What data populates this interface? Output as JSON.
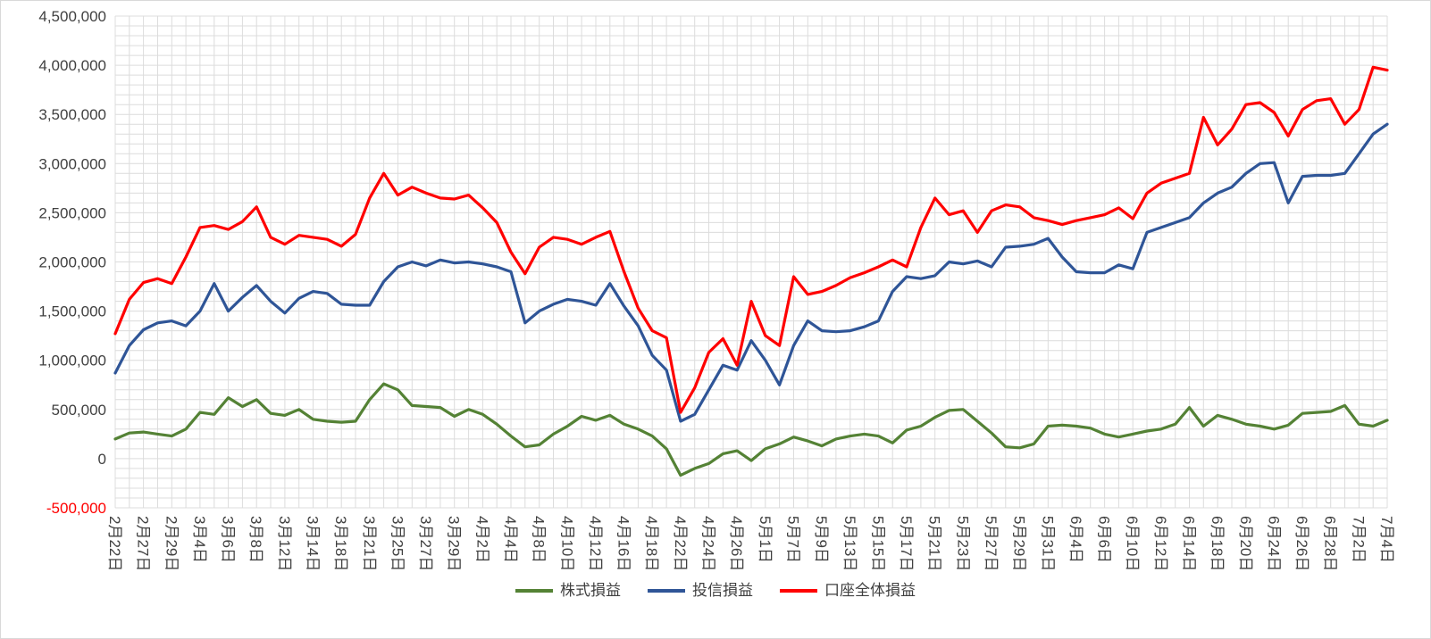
{
  "chart_data": {
    "type": "line",
    "title": "",
    "num_points": 91,
    "label_every_nth_point": 2,
    "x_tick_labels": [
      "2月22日",
      "2月27日",
      "2月29日",
      "3月4日",
      "3月6日",
      "3月8日",
      "3月12日",
      "3月14日",
      "3月18日",
      "3月21日",
      "3月25日",
      "3月27日",
      "3月29日",
      "4月2日",
      "4月4日",
      "4月8日",
      "4月10日",
      "4月12日",
      "4月16日",
      "4月18日",
      "4月22日",
      "4月24日",
      "4月26日",
      "5月1日",
      "5月7日",
      "5月9日",
      "5月13日",
      "5月15日",
      "5月17日",
      "5月21日",
      "5月23日",
      "5月27日",
      "5月29日",
      "5月31日",
      "6月4日",
      "6月6日",
      "6月10日",
      "6月12日",
      "6月14日",
      "6月18日",
      "6月20日",
      "6月24日",
      "6月26日",
      "6月28日",
      "7月2日",
      "7月4日"
    ],
    "y_axis": {
      "min": -500000,
      "max": 4500000,
      "major_step": 500000,
      "minor_step": 100000,
      "tick_labels": [
        "4,500,000",
        "4,000,000",
        "3,500,000",
        "3,000,000",
        "2,500,000",
        "2,000,000",
        "1,500,000",
        "1,000,000",
        "500,000",
        "0",
        "-500,000"
      ],
      "label_color": "#404040",
      "negative_label_color": "#ff0000"
    },
    "grid": {
      "major": true,
      "minor": true,
      "color": "#dcdcdc"
    },
    "legend": {
      "position": "bottom",
      "items": [
        "株式損益",
        "投信損益",
        "口座全体損益"
      ]
    },
    "series": [
      {
        "id": "stock",
        "name": "株式損益",
        "color": "#548235",
        "values": [
          200000,
          260000,
          270000,
          250000,
          230000,
          300000,
          470000,
          450000,
          620000,
          530000,
          600000,
          460000,
          440000,
          500000,
          400000,
          380000,
          370000,
          380000,
          600000,
          760000,
          700000,
          540000,
          530000,
          520000,
          430000,
          500000,
          450000,
          350000,
          230000,
          120000,
          140000,
          250000,
          330000,
          430000,
          390000,
          440000,
          350000,
          300000,
          230000,
          100000,
          -170000,
          -100000,
          -50000,
          50000,
          80000,
          -20000,
          100000,
          150000,
          220000,
          180000,
          130000,
          200000,
          230000,
          250000,
          230000,
          160000,
          290000,
          330000,
          420000,
          490000,
          500000,
          380000,
          260000,
          120000,
          110000,
          150000,
          330000,
          340000,
          330000,
          310000,
          250000,
          220000,
          250000,
          280000,
          300000,
          350000,
          520000,
          330000,
          440000,
          400000,
          350000,
          330000,
          300000,
          340000,
          460000,
          470000,
          480000,
          540000,
          350000,
          330000,
          390000
        ]
      },
      {
        "id": "fund",
        "name": "投信損益",
        "color": "#2f5597",
        "values": [
          870000,
          1150000,
          1310000,
          1380000,
          1400000,
          1350000,
          1500000,
          1780000,
          1500000,
          1640000,
          1760000,
          1600000,
          1480000,
          1630000,
          1700000,
          1680000,
          1570000,
          1560000,
          1560000,
          1800000,
          1950000,
          2000000,
          1960000,
          2020000,
          1990000,
          2000000,
          1980000,
          1950000,
          1900000,
          1380000,
          1500000,
          1570000,
          1620000,
          1600000,
          1560000,
          1780000,
          1550000,
          1350000,
          1050000,
          900000,
          380000,
          450000,
          700000,
          950000,
          900000,
          1200000,
          1000000,
          750000,
          1150000,
          1400000,
          1300000,
          1290000,
          1300000,
          1340000,
          1400000,
          1700000,
          1850000,
          1830000,
          1860000,
          2000000,
          1980000,
          2010000,
          1950000,
          2150000,
          2160000,
          2180000,
          2240000,
          2050000,
          1900000,
          1890000,
          1890000,
          1970000,
          1930000,
          2300000,
          2350000,
          2400000,
          2450000,
          2600000,
          2700000,
          2760000,
          2900000,
          3000000,
          3010000,
          2600000,
          2870000,
          2880000,
          2880000,
          2900000,
          3100000,
          3300000,
          3400000
        ]
      },
      {
        "id": "account",
        "name": "口座全体損益",
        "color": "#ff0000",
        "values": [
          1270000,
          1620000,
          1790000,
          1830000,
          1780000,
          2050000,
          2350000,
          2370000,
          2330000,
          2410000,
          2560000,
          2250000,
          2180000,
          2270000,
          2250000,
          2230000,
          2160000,
          2280000,
          2650000,
          2900000,
          2680000,
          2760000,
          2700000,
          2650000,
          2640000,
          2680000,
          2550000,
          2400000,
          2100000,
          1880000,
          2150000,
          2250000,
          2230000,
          2180000,
          2250000,
          2310000,
          1900000,
          1530000,
          1300000,
          1230000,
          470000,
          720000,
          1080000,
          1220000,
          950000,
          1600000,
          1250000,
          1150000,
          1850000,
          1670000,
          1700000,
          1760000,
          1840000,
          1890000,
          1950000,
          2020000,
          1950000,
          2350000,
          2650000,
          2480000,
          2520000,
          2300000,
          2520000,
          2580000,
          2560000,
          2450000,
          2420000,
          2380000,
          2420000,
          2450000,
          2480000,
          2550000,
          2440000,
          2700000,
          2800000,
          2850000,
          2900000,
          3470000,
          3190000,
          3350000,
          3600000,
          3620000,
          3520000,
          3280000,
          3550000,
          3640000,
          3660000,
          3400000,
          3550000,
          3980000,
          3950000
        ]
      }
    ]
  }
}
